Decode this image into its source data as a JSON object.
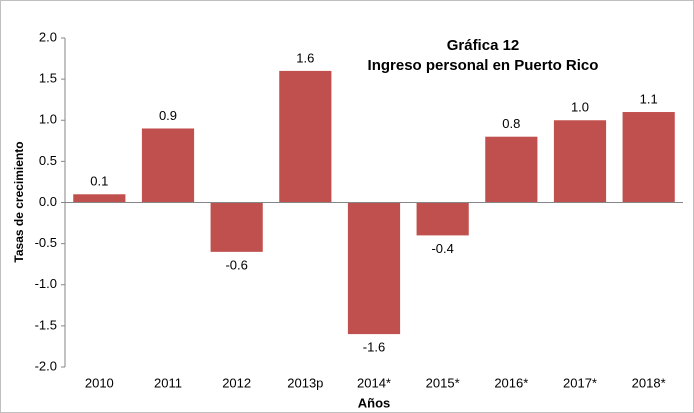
{
  "chart_data": {
    "type": "bar",
    "title": "Gráfica 12",
    "subtitle": "Ingreso personal en Puerto Rico",
    "y_label": "Tasas de crecimiento",
    "x_label": "Años",
    "categories": [
      "2010",
      "2011",
      "2012",
      "2013p",
      "2014*",
      "2015*",
      "2016*",
      "2017*",
      "2018*"
    ],
    "values": [
      0.1,
      0.9,
      -0.6,
      1.6,
      -1.6,
      -0.4,
      0.8,
      1.0,
      1.1
    ],
    "value_labels": [
      "0.1",
      "0.9",
      "-0.6",
      "1.6",
      "-1.6",
      "-0.4",
      "0.8",
      "1.0",
      "1.1"
    ],
    "color": "#c0504d",
    "ylim": [
      -2,
      2
    ],
    "yticks": [
      {
        "value": -2,
        "label": "-2.0"
      },
      -1.5,
      {
        "value": -1,
        "label": "-1.0"
      },
      -0.5,
      {
        "value": 0,
        "label": "0.0"
      },
      0.5,
      {
        "value": 1,
        "label": "1.0"
      },
      1.5,
      {
        "value": 2,
        "label": "2.0"
      }
    ],
    "grid": false
  }
}
